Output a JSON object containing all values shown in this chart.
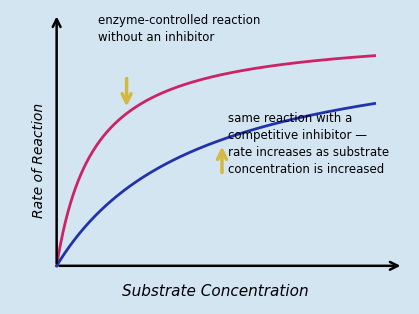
{
  "background_color": "#d4e5f2",
  "curve1_color": "#cc2266",
  "curve2_color": "#2233aa",
  "curve1_Vmax": 1.0,
  "curve1_Km": 0.12,
  "curve2_Vmax": 1.0,
  "curve2_Km": 0.45,
  "x_max": 1.0,
  "xlabel": "Substrate Concentration",
  "ylabel": "Rate of Reaction",
  "annotation1_text": "enzyme-controlled reaction\nwithout an inhibitor",
  "annotation2_text": "same reaction with a\ncompetitive inhibitor —\nrate increases as substrate\nconcentration is increased",
  "arrow_color": "#d4b840",
  "arrow_outline": "#888820",
  "line_width": 2.0,
  "xlabel_fontsize": 11,
  "ylabel_fontsize": 10,
  "annotation_fontsize": 8.5
}
